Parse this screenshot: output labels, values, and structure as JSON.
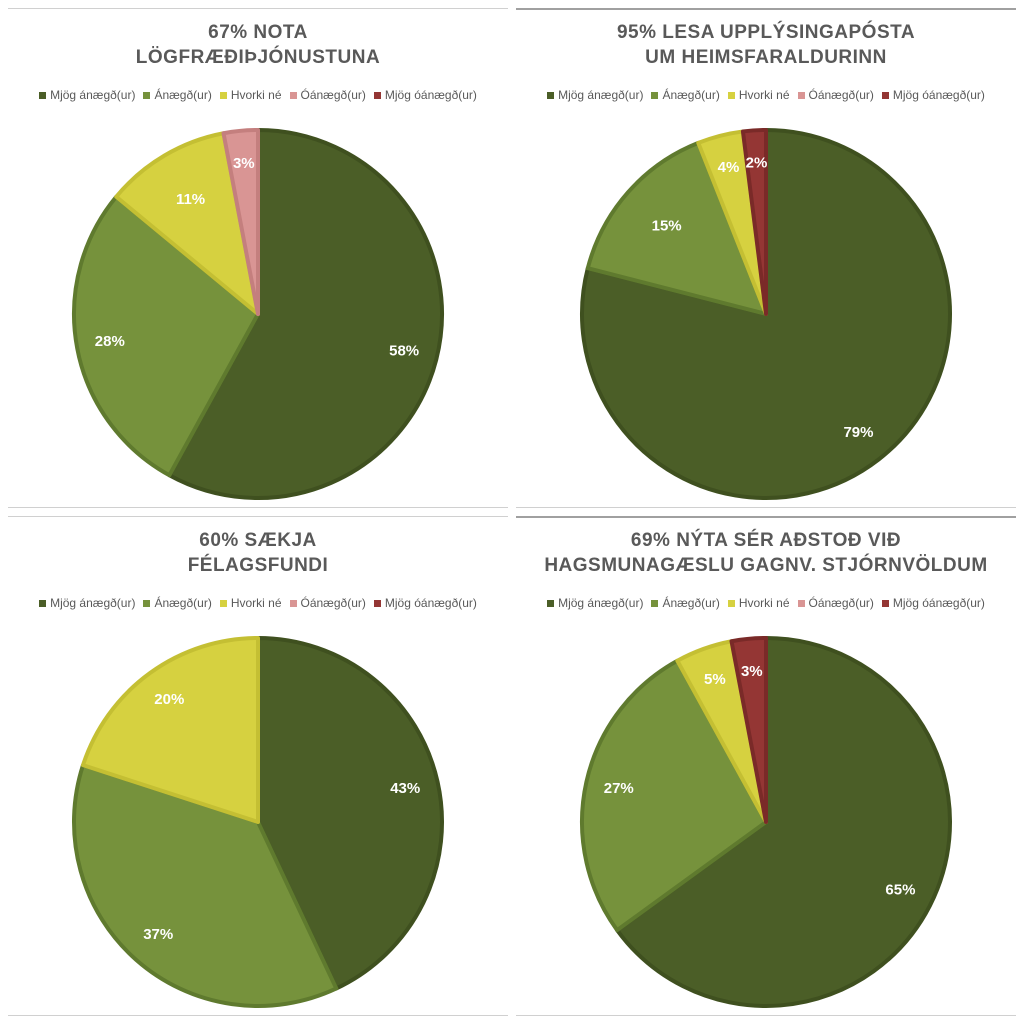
{
  "chart_data": [
    {
      "type": "pie",
      "title": [
        "67% NOTA",
        "LÖGFRÆÐIÞJÓNUSTUNA"
      ],
      "categories": [
        "Mjög ánægð(ur)",
        "Ánægð(ur)",
        "Hvorki né",
        "Óánægð(ur)",
        "Mjög óánægð(ur)"
      ],
      "values": [
        58,
        28,
        11,
        3,
        0
      ],
      "labels": [
        "58%",
        "28%",
        "11%",
        "3%",
        ""
      ],
      "legend": "top"
    },
    {
      "type": "pie",
      "title": [
        "95% LESA UPPLÝSINGAPÓSTA",
        "UM HEIMSFARALDURINN"
      ],
      "categories": [
        "Mjög ánægð(ur)",
        "Ánægð(ur)",
        "Hvorki né",
        "Óánægð(ur)",
        "Mjög óánægð(ur)"
      ],
      "values": [
        79,
        15,
        4,
        0,
        2
      ],
      "labels": [
        "79%",
        "15%",
        "4%",
        "",
        "2%"
      ],
      "legend": "top"
    },
    {
      "type": "pie",
      "title": [
        "60% SÆKJA",
        "FÉLAGSFUNDI"
      ],
      "categories": [
        "Mjög ánægð(ur)",
        "Ánægð(ur)",
        "Hvorki né",
        "Óánægð(ur)",
        "Mjög óánægð(ur)"
      ],
      "values": [
        43,
        37,
        20,
        0,
        0
      ],
      "labels": [
        "43%",
        "37%",
        "20%",
        "",
        ""
      ],
      "legend": "top"
    },
    {
      "type": "pie",
      "title": [
        "69% NÝTA SÉR AÐSTOÐ VIÐ",
        "HAGSMUNAGÆSLU GAGNV. STJÓRNVÖLDUM"
      ],
      "categories": [
        "Mjög ánægð(ur)",
        "Ánægð(ur)",
        "Hvorki né",
        "Óánægð(ur)",
        "Mjög óánægð(ur)"
      ],
      "values": [
        65,
        27,
        5,
        0,
        3
      ],
      "labels": [
        "65%",
        "27%",
        "5%",
        "",
        "3%"
      ],
      "legend": "top"
    }
  ],
  "colors": {
    "Mjög ánægð(ur)": "#4b5e27",
    "Ánægð(ur)": "#76923c",
    "Hvorki né": "#d6d140",
    "Óánægð(ur)": "#d99594",
    "Mjög óánægð(ur)": "#943634"
  }
}
